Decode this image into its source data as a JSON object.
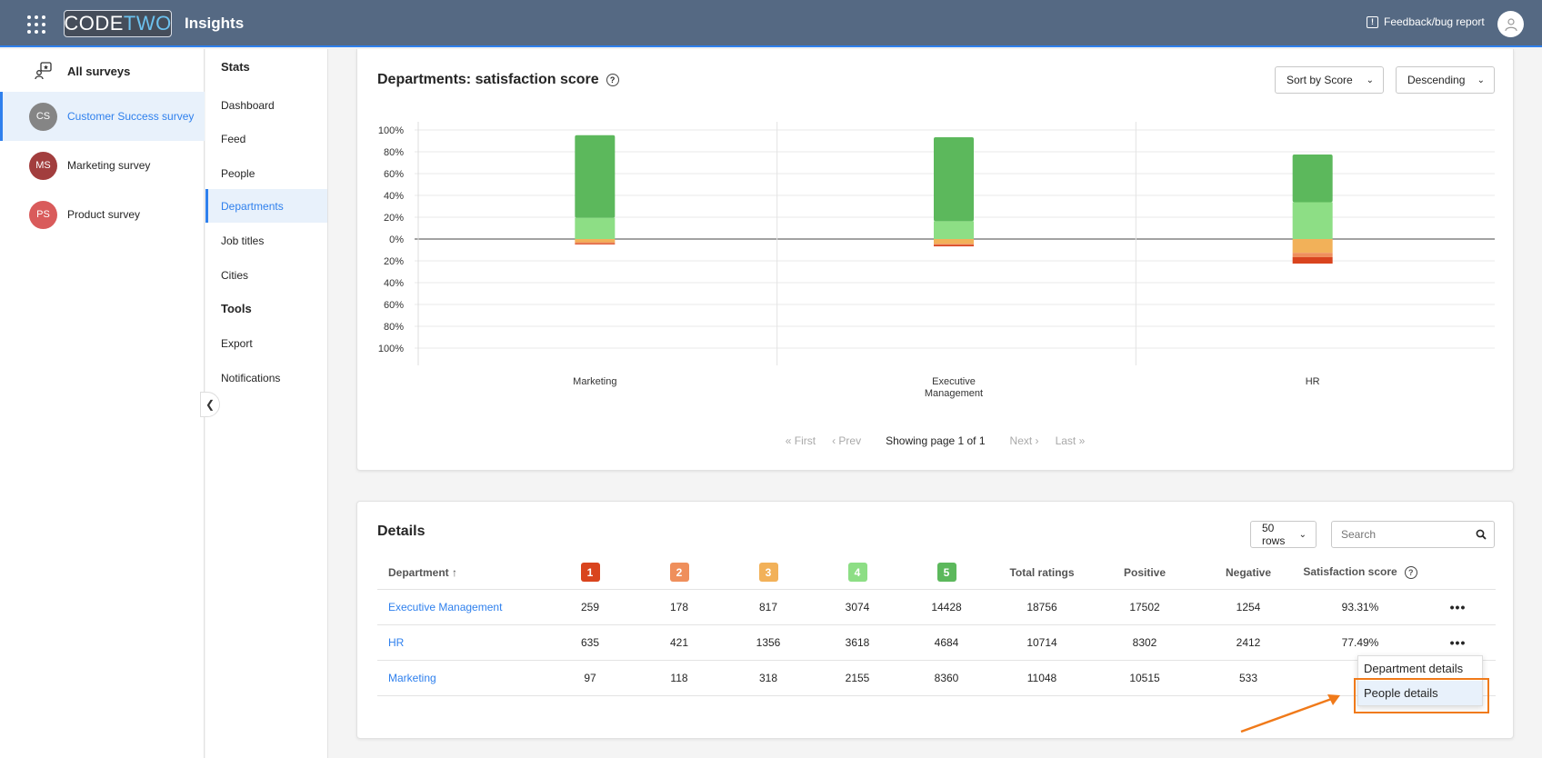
{
  "header": {
    "logo_code": "CODE",
    "logo_two": "TWO",
    "app_title": "Insights",
    "feedback_label": "Feedback/bug report"
  },
  "surveys": {
    "all_label": "All surveys",
    "items": [
      {
        "initials": "CS",
        "label": "Customer Success survey",
        "color": "#858585"
      },
      {
        "initials": "MS",
        "label": "Marketing survey",
        "color": "#a23e3e"
      },
      {
        "initials": "PS",
        "label": "Product survey",
        "color": "#d95b5b"
      }
    ]
  },
  "nav": {
    "stats_heading": "Stats",
    "tools_heading": "Tools",
    "items": [
      "Dashboard",
      "Feed",
      "People",
      "Departments",
      "Job titles",
      "Cities"
    ],
    "tools": [
      "Export",
      "Notifications"
    ]
  },
  "chart_card": {
    "title": "Departments: satisfaction score",
    "sort_label": "Sort by Score",
    "order_label": "Descending",
    "pager": {
      "first": "First",
      "prev": "Prev",
      "status": "Showing page 1 of 1",
      "next": "Next",
      "last": "Last"
    }
  },
  "chart_data": {
    "type": "bar",
    "stacked": true,
    "diverging": true,
    "categories": [
      "Marketing",
      "Executive Management",
      "HR"
    ],
    "ylim": [
      -100,
      100
    ],
    "ytick_labels": [
      "100%",
      "80%",
      "60%",
      "40%",
      "20%",
      "0%",
      "20%",
      "40%",
      "60%",
      "80%",
      "100%"
    ],
    "grid": true,
    "series": [
      {
        "name": "5",
        "color": "#5cb85c",
        "values": [
          75.7,
          76.9,
          43.7
        ]
      },
      {
        "name": "4",
        "color": "#8dde85",
        "values": [
          19.5,
          16.4,
          33.8
        ]
      },
      {
        "name": "3",
        "color": "#f2b159",
        "values": [
          -2.9,
          -4.4,
          -12.7
        ]
      },
      {
        "name": "2",
        "color": "#ef8f5c",
        "values": [
          -1.1,
          -0.9,
          -3.9
        ]
      },
      {
        "name": "1",
        "color": "#d9441e",
        "values": [
          -0.9,
          -1.4,
          -5.9
        ]
      }
    ]
  },
  "details": {
    "title": "Details",
    "rows_label": "50 rows",
    "search_placeholder": "Search",
    "headers": {
      "department": "Department",
      "r1": "1",
      "r2": "2",
      "r3": "3",
      "r4": "4",
      "r5": "5",
      "total": "Total ratings",
      "positive": "Positive",
      "negative": "Negative",
      "score": "Satisfaction score"
    },
    "rating_colors": [
      "#d9441e",
      "#ef8f5c",
      "#f2b159",
      "#8dde85",
      "#5cb85c"
    ],
    "rows": [
      {
        "department": "Executive Management",
        "r1": "259",
        "r2": "178",
        "r3": "817",
        "r4": "3074",
        "r5": "14428",
        "total": "18756",
        "positive": "17502",
        "negative": "1254",
        "score": "93.31%"
      },
      {
        "department": "HR",
        "r1": "635",
        "r2": "421",
        "r3": "1356",
        "r4": "3618",
        "r5": "4684",
        "total": "10714",
        "positive": "8302",
        "negative": "2412",
        "score": "77.49%"
      },
      {
        "department": "Marketing",
        "r1": "97",
        "r2": "118",
        "r3": "318",
        "r4": "2155",
        "r5": "8360",
        "total": "11048",
        "positive": "10515",
        "negative": "533",
        "score": ""
      }
    ],
    "menu": {
      "department_details": "Department details",
      "people_details": "People details"
    }
  }
}
